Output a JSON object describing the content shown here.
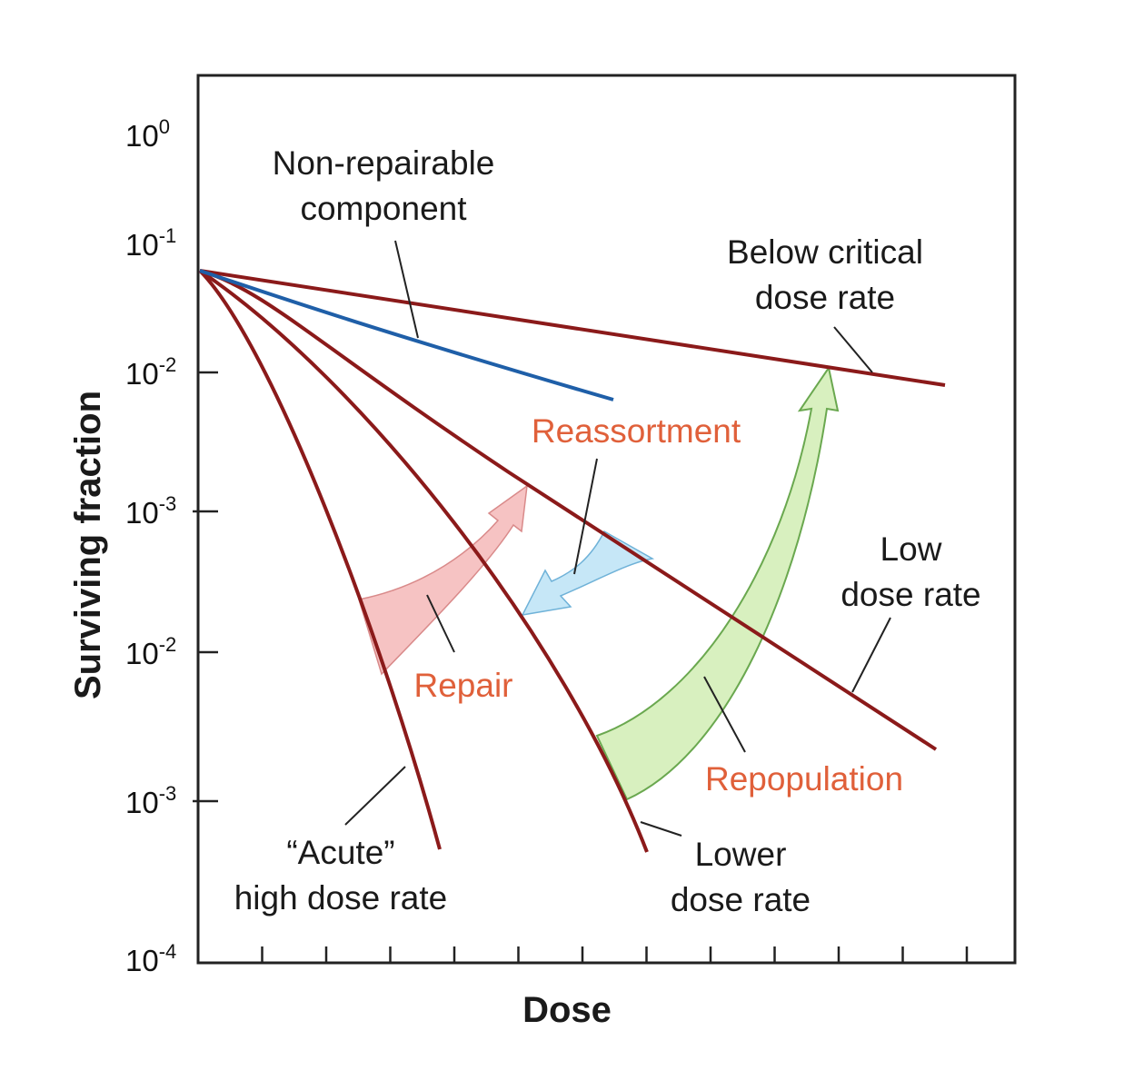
{
  "chart_data": {
    "type": "line",
    "title": "",
    "xlabel": "Dose",
    "ylabel": "Surviving fraction",
    "y_scale": "log",
    "y_tick_labels": [
      {
        "base": "10",
        "exp": "0"
      },
      {
        "base": "10",
        "exp": "-1"
      },
      {
        "base": "10",
        "exp": "-2"
      },
      {
        "base": "10",
        "exp": "-3"
      },
      {
        "base": "10",
        "exp": "-2"
      },
      {
        "base": "10",
        "exp": "-3"
      },
      {
        "base": "10",
        "exp": "-4"
      }
    ],
    "x_ticks_count": 12,
    "curves": [
      {
        "label_lines": [
          "“Acute”",
          "high dose rate"
        ],
        "color": "#8b1a1a"
      },
      {
        "label_lines": [
          "Lower",
          "dose rate"
        ],
        "color": "#8b1a1a"
      },
      {
        "label_lines": [
          "Low",
          "dose rate"
        ],
        "color": "#8b1a1a"
      },
      {
        "label_lines": [
          "Below critical",
          "dose rate"
        ],
        "color": "#8b1a1a"
      },
      {
        "label_lines": [
          "Non-repairable",
          "component"
        ],
        "color": "#1f5fa8"
      }
    ],
    "processes": [
      {
        "label": "Repair",
        "color": "#f4b8b8"
      },
      {
        "label": "Reassortment",
        "color": "#bfe3f5"
      },
      {
        "label": "Repopulation",
        "color": "#d4efb8"
      }
    ],
    "process_label_color": "#e0603a"
  }
}
